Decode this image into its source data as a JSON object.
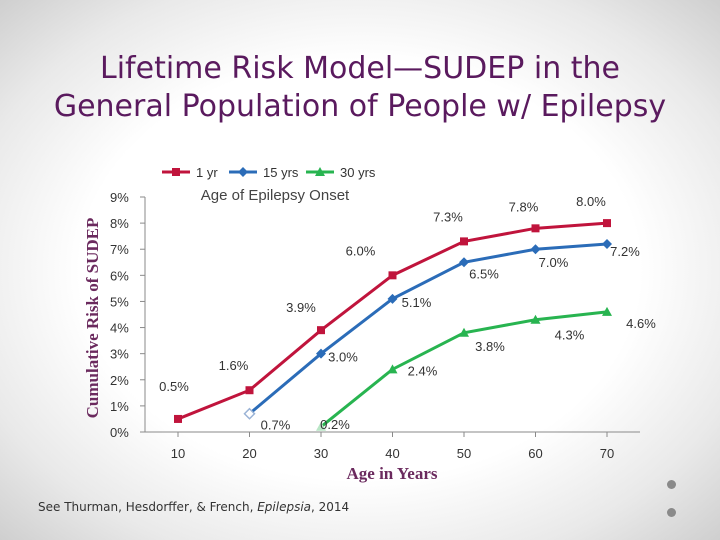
{
  "slide": {
    "title_line1": "Lifetime Risk Model—SUDEP in the",
    "title_line2": "General Population of People w/ Epilepsy",
    "citation_prefix": "See Thurman, Hesdorffer, & French, ",
    "citation_journal": "Epilepsia",
    "citation_suffix": ", 2014"
  },
  "chart_data": {
    "type": "line",
    "title": "",
    "xlabel": "Age in Years",
    "ylabel": "Cumulative Risk of SUDEP",
    "legend_title": "Age of Epilepsy Onset",
    "legend_position": "top",
    "x_ticks": [
      "10",
      "20",
      "30",
      "40",
      "50",
      "60",
      "70"
    ],
    "y_ticks": [
      "0%",
      "1%",
      "2%",
      "3%",
      "4%",
      "5%",
      "6%",
      "7%",
      "8%",
      "9%"
    ],
    "ylim": [
      0,
      9
    ],
    "xlim": [
      10,
      70
    ],
    "series": [
      {
        "name": "1 yr",
        "color": "#c0143c",
        "marker": "square",
        "x": [
          10,
          20,
          30,
          40,
          50,
          60,
          70
        ],
        "values": [
          0.5,
          1.6,
          3.9,
          6.0,
          7.3,
          7.8,
          8.0
        ],
        "labels": [
          "0.5%",
          "1.6%",
          "3.9%",
          "6.0%",
          "7.3%",
          "7.8%",
          "8.0%"
        ]
      },
      {
        "name": "15 yrs",
        "color": "#2b6cb8",
        "marker": "diamond",
        "x": [
          20,
          30,
          40,
          50,
          60,
          70
        ],
        "values": [
          0.7,
          3.0,
          5.1,
          6.5,
          7.0,
          7.2
        ],
        "labels": [
          "0.7%",
          "3.0%",
          "5.1%",
          "6.5%",
          "7.0%",
          "7.2%"
        ]
      },
      {
        "name": "30 yrs",
        "color": "#28b450",
        "marker": "triangle",
        "x": [
          30,
          40,
          50,
          60,
          70
        ],
        "values": [
          0.2,
          2.4,
          3.8,
          4.3,
          4.6
        ],
        "labels": [
          "0.2%",
          "2.4%",
          "3.8%",
          "4.3%",
          "4.6%"
        ]
      }
    ]
  }
}
